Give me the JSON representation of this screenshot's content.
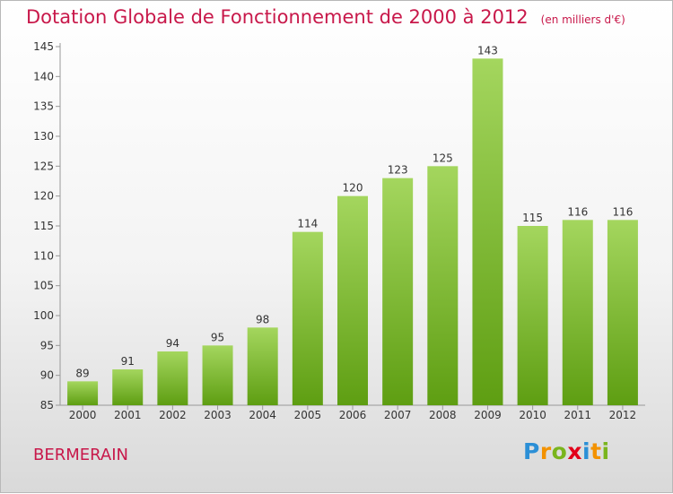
{
  "title": "Dotation Globale de Fonctionnement de 2000 à 2012",
  "subtitle": "(en milliers d'€)",
  "commune": "BERMERAIN",
  "logo": {
    "text": "Proxiti",
    "letters": [
      {
        "char": "P",
        "color": "#2b8fd6"
      },
      {
        "char": "r",
        "color": "#f39200"
      },
      {
        "char": "o",
        "color": "#7ab51d"
      },
      {
        "char": "x",
        "color": "#e2001a"
      },
      {
        "char": "i",
        "color": "#2b8fd6"
      },
      {
        "char": "t",
        "color": "#f39200"
      },
      {
        "char": "i",
        "color": "#7ab51d"
      }
    ]
  },
  "colors": {
    "title": "#c8184a",
    "bar_top": "#a4d65e",
    "bar_bottom": "#5e9e12"
  },
  "chart_data": {
    "type": "bar",
    "title": "Dotation Globale de Fonctionnement de 2000 à 2012",
    "subtitle": "(en milliers d'€)",
    "categories": [
      "2000",
      "2001",
      "2002",
      "2003",
      "2004",
      "2005",
      "2006",
      "2007",
      "2008",
      "2009",
      "2010",
      "2011",
      "2012"
    ],
    "values": [
      89,
      91,
      94,
      95,
      98,
      114,
      120,
      123,
      125,
      143,
      115,
      116,
      116
    ],
    "ylim": [
      85,
      145
    ],
    "yticks": [
      85,
      90,
      95,
      100,
      105,
      110,
      115,
      120,
      125,
      130,
      135,
      140,
      145
    ],
    "grid": false,
    "legend": "none"
  }
}
